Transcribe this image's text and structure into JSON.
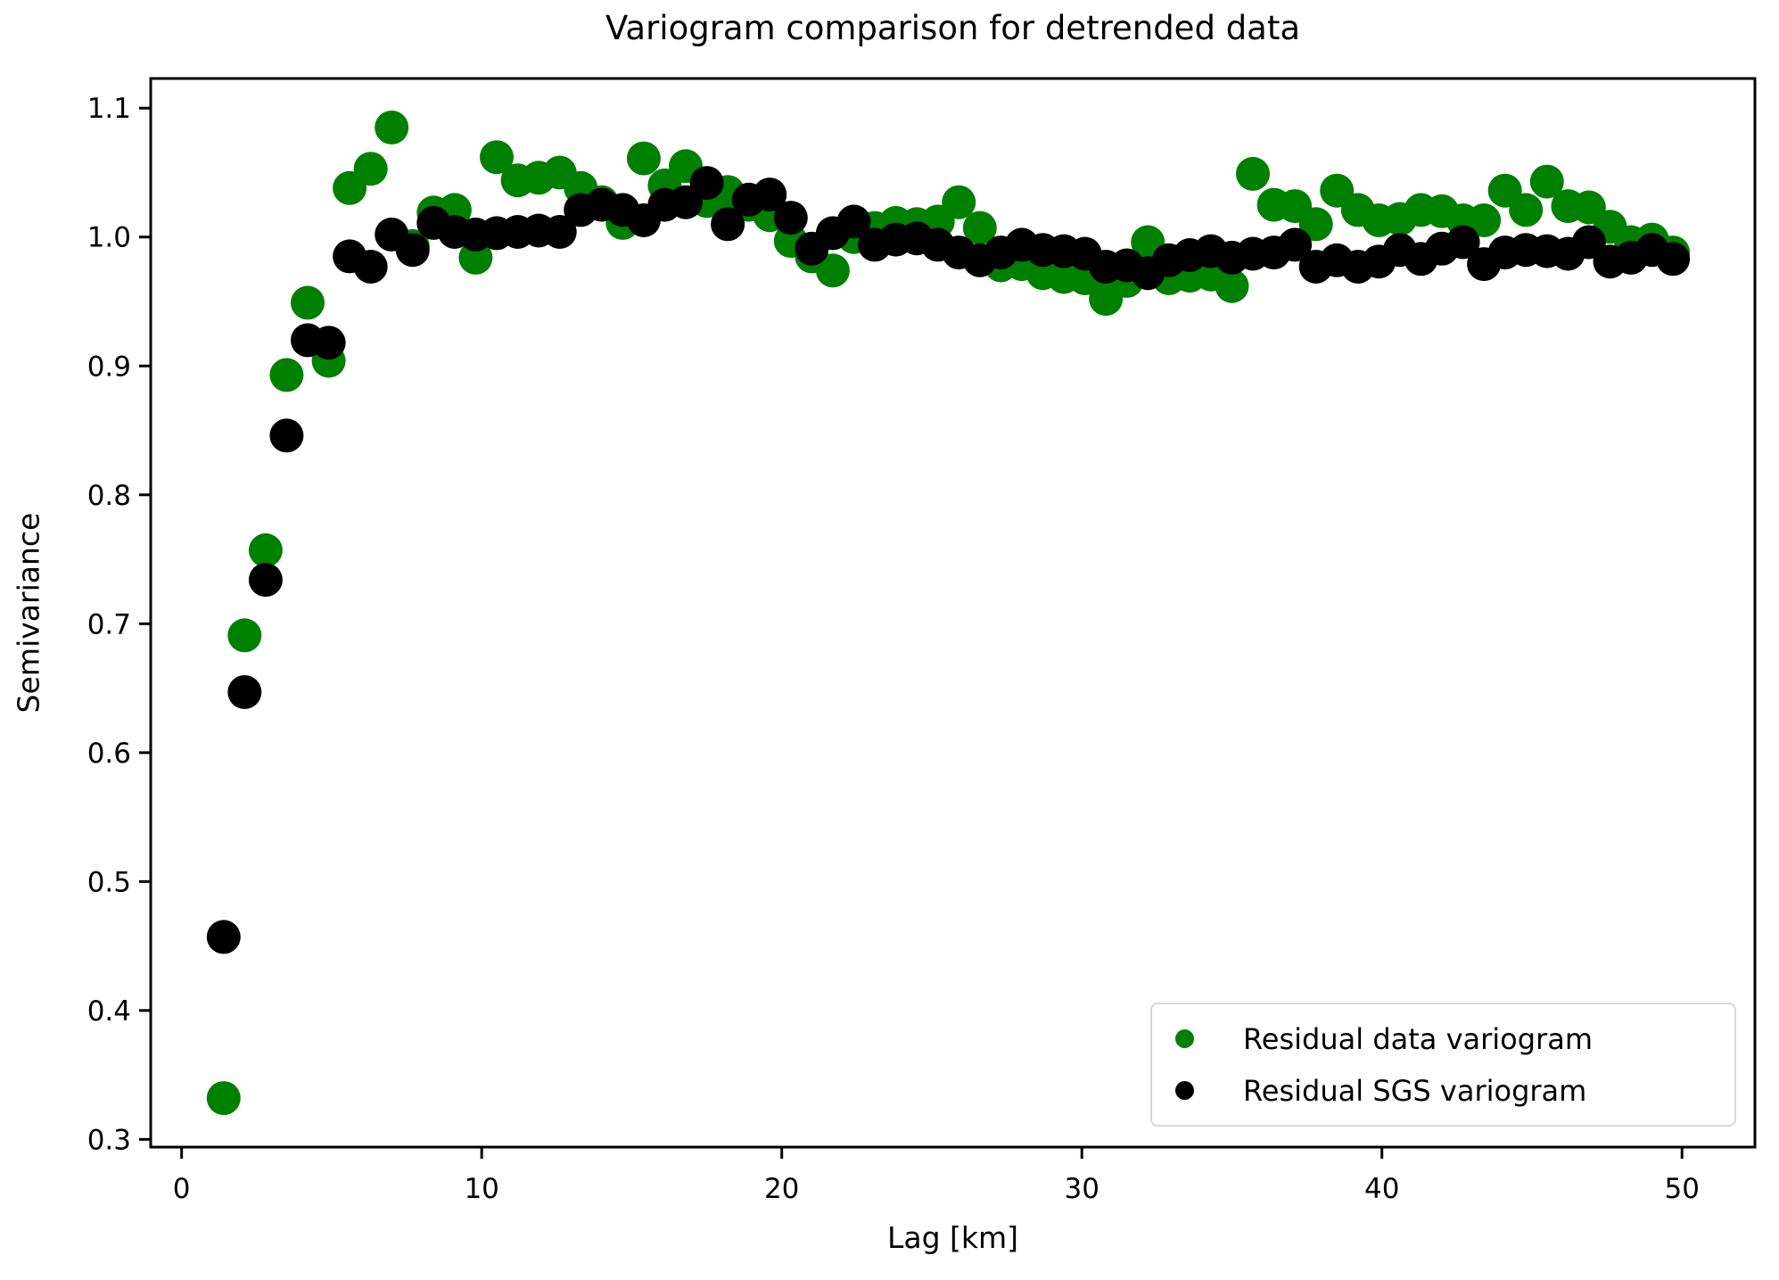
{
  "chart_data": {
    "type": "scatter",
    "title": "Variogram comparison for detrended data",
    "xlabel": "Lag [km]",
    "ylabel": "Semivariance",
    "xlim": [
      -1.03,
      52.43
    ],
    "ylim": [
      0.294,
      1.123
    ],
    "grid": false,
    "legend_position": "lower right",
    "xticks": [
      {
        "value": 0,
        "label": "0"
      },
      {
        "value": 10,
        "label": "10"
      },
      {
        "value": 20,
        "label": "20"
      },
      {
        "value": 30,
        "label": "30"
      },
      {
        "value": 40,
        "label": "40"
      },
      {
        "value": 50,
        "label": "50"
      }
    ],
    "yticks": [
      {
        "value": 0.3,
        "label": "0.3"
      },
      {
        "value": 0.4,
        "label": "0.4"
      },
      {
        "value": 0.5,
        "label": "0.5"
      },
      {
        "value": 0.6,
        "label": "0.6"
      },
      {
        "value": 0.7,
        "label": "0.7"
      },
      {
        "value": 0.8,
        "label": "0.8"
      },
      {
        "value": 0.9,
        "label": "0.9"
      },
      {
        "value": 1.0,
        "label": "1.0"
      },
      {
        "value": 1.1,
        "label": "1.1"
      }
    ],
    "series": [
      {
        "name": "Residual data variogram",
        "color": "#008000",
        "marker": "circle",
        "points": [
          [
            1.4,
            0.332
          ],
          [
            2.1,
            0.691
          ],
          [
            2.8,
            0.757
          ],
          [
            3.5,
            0.893
          ],
          [
            4.2,
            0.949
          ],
          [
            4.9,
            0.904
          ],
          [
            5.6,
            1.038
          ],
          [
            6.3,
            1.053
          ],
          [
            7.0,
            1.085
          ],
          [
            7.7,
            0.993
          ],
          [
            8.4,
            1.019
          ],
          [
            9.1,
            1.021
          ],
          [
            9.8,
            0.984
          ],
          [
            10.5,
            1.062
          ],
          [
            11.2,
            1.044
          ],
          [
            11.9,
            1.046
          ],
          [
            12.6,
            1.05
          ],
          [
            13.3,
            1.038
          ],
          [
            14.0,
            1.027
          ],
          [
            14.7,
            1.011
          ],
          [
            15.4,
            1.061
          ],
          [
            16.1,
            1.04
          ],
          [
            16.8,
            1.055
          ],
          [
            17.5,
            1.028
          ],
          [
            18.2,
            1.035
          ],
          [
            18.9,
            1.025
          ],
          [
            19.6,
            1.017
          ],
          [
            20.3,
            0.997
          ],
          [
            21.0,
            0.985
          ],
          [
            21.7,
            0.974
          ],
          [
            22.4,
            1.0
          ],
          [
            23.1,
            1.007
          ],
          [
            23.8,
            1.011
          ],
          [
            24.5,
            1.01
          ],
          [
            25.2,
            1.012
          ],
          [
            25.9,
            1.027
          ],
          [
            26.6,
            1.007
          ],
          [
            27.3,
            0.978
          ],
          [
            28.0,
            0.979
          ],
          [
            28.7,
            0.972
          ],
          [
            29.4,
            0.969
          ],
          [
            30.1,
            0.968
          ],
          [
            30.8,
            0.952
          ],
          [
            31.5,
            0.966
          ],
          [
            32.2,
            0.996
          ],
          [
            32.9,
            0.968
          ],
          [
            33.6,
            0.97
          ],
          [
            34.3,
            0.971
          ],
          [
            35.0,
            0.962
          ],
          [
            35.7,
            1.049
          ],
          [
            36.4,
            1.025
          ],
          [
            37.1,
            1.024
          ],
          [
            37.8,
            1.01
          ],
          [
            38.5,
            1.036
          ],
          [
            39.2,
            1.021
          ],
          [
            39.9,
            1.013
          ],
          [
            40.6,
            1.014
          ],
          [
            41.3,
            1.021
          ],
          [
            42.0,
            1.02
          ],
          [
            42.7,
            1.013
          ],
          [
            43.4,
            1.013
          ],
          [
            44.1,
            1.036
          ],
          [
            44.8,
            1.021
          ],
          [
            45.5,
            1.043
          ],
          [
            46.2,
            1.024
          ],
          [
            46.9,
            1.023
          ],
          [
            47.6,
            1.008
          ],
          [
            48.3,
            0.996
          ],
          [
            49.0,
            0.998
          ],
          [
            49.7,
            0.988
          ]
        ]
      },
      {
        "name": "Residual SGS variogram",
        "color": "#000000",
        "marker": "circle",
        "points": [
          [
            1.4,
            0.457
          ],
          [
            2.1,
            0.647
          ],
          [
            2.8,
            0.734
          ],
          [
            3.5,
            0.846
          ],
          [
            4.2,
            0.92
          ],
          [
            4.9,
            0.918
          ],
          [
            5.6,
            0.985
          ],
          [
            6.3,
            0.977
          ],
          [
            7.0,
            1.002
          ],
          [
            7.7,
            0.99
          ],
          [
            8.4,
            1.011
          ],
          [
            9.1,
            1.004
          ],
          [
            9.8,
            1.002
          ],
          [
            10.5,
            1.003
          ],
          [
            11.2,
            1.004
          ],
          [
            11.9,
            1.005
          ],
          [
            12.6,
            1.004
          ],
          [
            13.3,
            1.021
          ],
          [
            14.0,
            1.025
          ],
          [
            14.7,
            1.021
          ],
          [
            15.4,
            1.013
          ],
          [
            16.1,
            1.025
          ],
          [
            16.8,
            1.027
          ],
          [
            17.5,
            1.042
          ],
          [
            18.2,
            1.01
          ],
          [
            18.9,
            1.029
          ],
          [
            19.6,
            1.033
          ],
          [
            20.3,
            1.015
          ],
          [
            21.0,
            0.991
          ],
          [
            21.7,
            1.003
          ],
          [
            22.4,
            1.012
          ],
          [
            23.1,
            0.994
          ],
          [
            23.8,
            0.998
          ],
          [
            24.5,
            0.999
          ],
          [
            25.2,
            0.994
          ],
          [
            25.9,
            0.988
          ],
          [
            26.6,
            0.982
          ],
          [
            27.3,
            0.988
          ],
          [
            28.0,
            0.994
          ],
          [
            28.7,
            0.99
          ],
          [
            29.4,
            0.989
          ],
          [
            30.1,
            0.987
          ],
          [
            30.8,
            0.977
          ],
          [
            31.5,
            0.978
          ],
          [
            32.2,
            0.972
          ],
          [
            32.9,
            0.982
          ],
          [
            33.6,
            0.986
          ],
          [
            34.3,
            0.989
          ],
          [
            35.0,
            0.984
          ],
          [
            35.7,
            0.987
          ],
          [
            36.4,
            0.988
          ],
          [
            37.1,
            0.994
          ],
          [
            37.8,
            0.977
          ],
          [
            38.5,
            0.982
          ],
          [
            39.2,
            0.977
          ],
          [
            39.9,
            0.981
          ],
          [
            40.6,
            0.99
          ],
          [
            41.3,
            0.983
          ],
          [
            42.0,
            0.991
          ],
          [
            42.7,
            0.996
          ],
          [
            43.4,
            0.979
          ],
          [
            44.1,
            0.988
          ],
          [
            44.8,
            0.99
          ],
          [
            45.5,
            0.989
          ],
          [
            46.2,
            0.987
          ],
          [
            46.9,
            0.996
          ],
          [
            47.6,
            0.981
          ],
          [
            48.3,
            0.984
          ],
          [
            49.0,
            0.99
          ],
          [
            49.7,
            0.983
          ]
        ]
      }
    ]
  }
}
